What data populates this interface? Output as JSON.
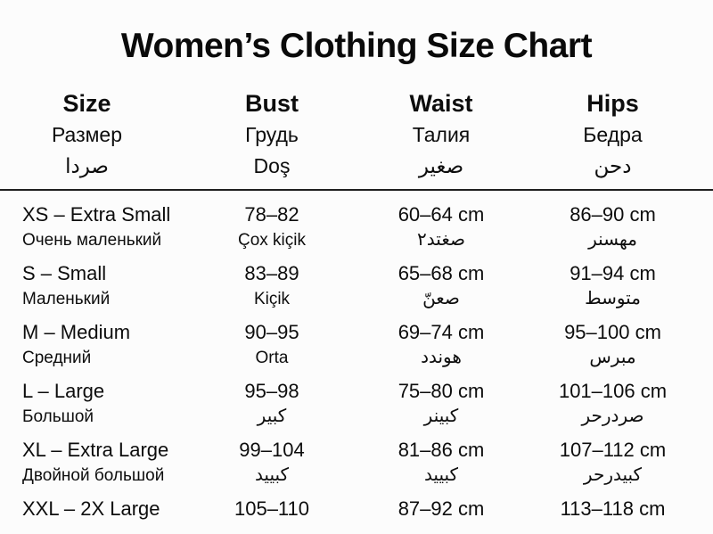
{
  "title": "Women’s Clothing Size Chart",
  "colors": {
    "background": "#fcfcfc",
    "text": "#0d0d0d",
    "divider": "#1f1f1f"
  },
  "columns": [
    {
      "line1": "Size",
      "line2": "Размер",
      "line3": "صردا"
    },
    {
      "line1": "Bust",
      "line2": "Грудь",
      "line3": "Doş"
    },
    {
      "line1": "Waist",
      "line2": "Талия",
      "line3": "صغير"
    },
    {
      "line1": "Hips",
      "line2": "Бедра",
      "line3": "دحن"
    }
  ],
  "rows": [
    {
      "size": "XS – Extra Small",
      "size_sub": "Очень маленький",
      "bust": "78–82",
      "bust_sub": "Çox kiçik",
      "waist": "60–64 cm",
      "waist_sub": "صغتد٢",
      "hips": "86–90 cm",
      "hips_sub": "مهسنر"
    },
    {
      "size": "S – Small",
      "size_sub": "Маленький",
      "bust": "83–89",
      "bust_sub": "Kiçik",
      "waist": "65–68 cm",
      "waist_sub": "صعنّ",
      "hips": "91–94 cm",
      "hips_sub": "متوسط"
    },
    {
      "size": "M – Medium",
      "size_sub": "Средний",
      "bust": "90–95",
      "bust_sub": "Orta",
      "waist": "69–74 cm",
      "waist_sub": "هوندد",
      "hips": "95–100 cm",
      "hips_sub": "مبرس"
    },
    {
      "size": "L – Large",
      "size_sub": "Большой",
      "bust": "95–98",
      "bust_sub": "كبير",
      "waist": "75–80 cm",
      "waist_sub": "كبينر",
      "hips": "101–106 cm",
      "hips_sub": "صردرحر"
    },
    {
      "size": "XL – Extra Large",
      "size_sub": "Двойной большой",
      "bust": "99–104",
      "bust_sub": "كبييد",
      "waist": "81–86 cm",
      "waist_sub": "كبييد",
      "hips": "107–112 cm",
      "hips_sub": "كبيدرحر"
    },
    {
      "size": "XXL – 2X Large",
      "size_sub": "",
      "bust": "105–110",
      "bust_sub": "",
      "waist": "87–92 cm",
      "waist_sub": "",
      "hips": "113–118 cm",
      "hips_sub": ""
    }
  ]
}
